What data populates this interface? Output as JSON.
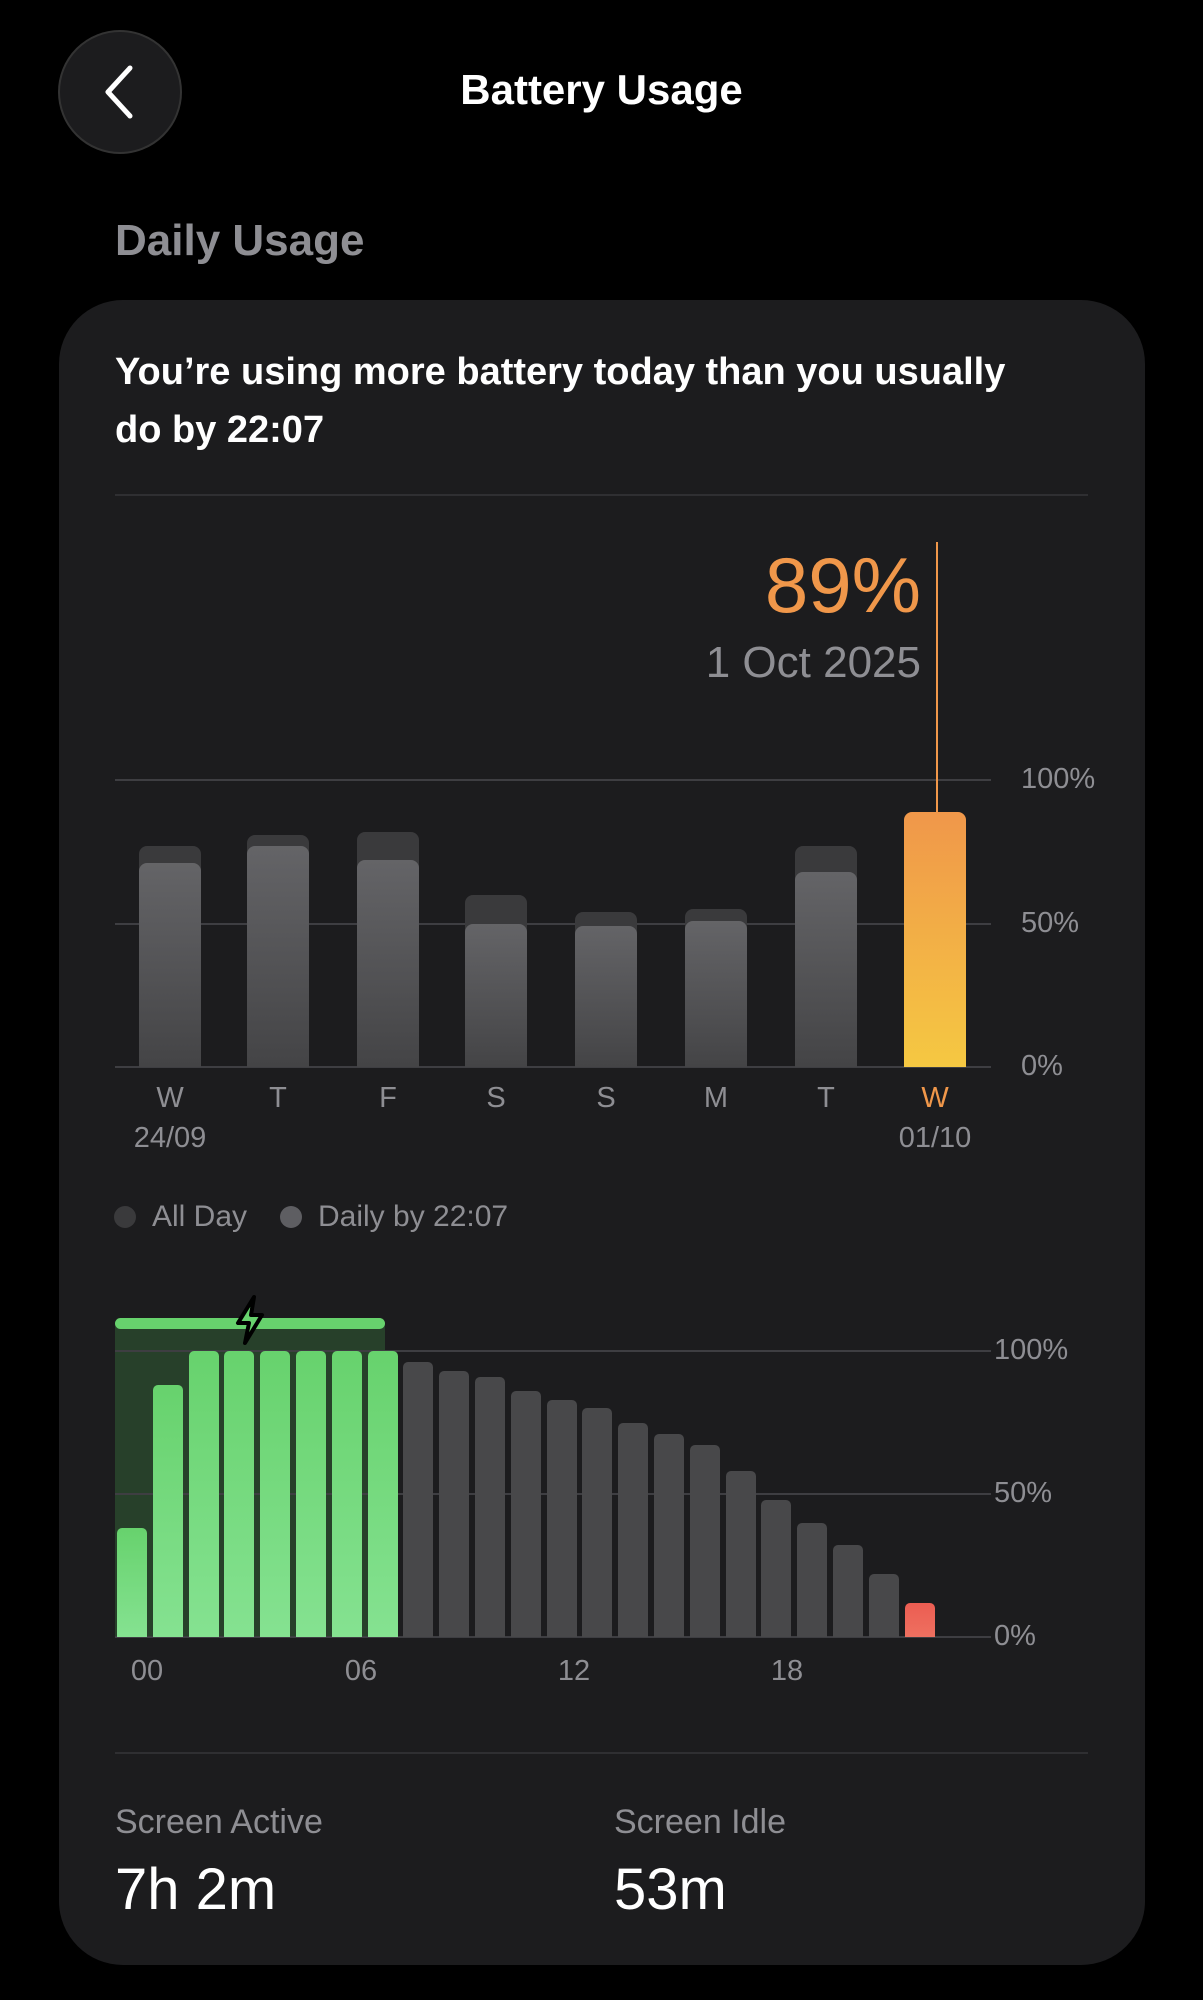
{
  "header": {
    "title": "Battery Usage",
    "back_icon": "chevron-left-icon"
  },
  "section_title": "Daily Usage",
  "card": {
    "headline": "You’re using more battery today than you usually do by 22:07",
    "selected": {
      "value": "89%",
      "date": "1 Oct 2025"
    },
    "legend": [
      {
        "label": "All Day",
        "color": "#3a3a3c"
      },
      {
        "label": "Daily by 22:07",
        "color": "#5e5e62"
      }
    ],
    "stats": [
      {
        "label": "Screen Active",
        "value": "7h 2m"
      },
      {
        "label": "Screen Idle",
        "value": "53m"
      }
    ]
  },
  "colors": {
    "accent": "#f0974a",
    "accent_bottom": "#f5c842",
    "charging": "#67d26d",
    "low": "#ec5d52",
    "bar": "#48484a"
  },
  "chart_data": [
    {
      "type": "bar",
      "categories": [
        "W",
        "T",
        "F",
        "S",
        "S",
        "M",
        "T",
        "W"
      ],
      "date_labels": [
        "24/09",
        "",
        "",
        "",
        "",
        "",
        "",
        "01/10"
      ],
      "series": [
        {
          "name": "All Day",
          "values": [
            77,
            81,
            82,
            60,
            54,
            55,
            77,
            89
          ]
        },
        {
          "name": "Daily by 22:07",
          "values": [
            71,
            77,
            72,
            50,
            49,
            51,
            68,
            89
          ]
        }
      ],
      "yticks": [
        "100%",
        "50%",
        "0%"
      ],
      "ylim": [
        0,
        100
      ],
      "highlight_index": 7
    },
    {
      "type": "bar",
      "hours": [
        0,
        1,
        2,
        3,
        4,
        5,
        6,
        7,
        8,
        9,
        10,
        11,
        12,
        13,
        14,
        15,
        16,
        17,
        18,
        19,
        20,
        21,
        22
      ],
      "values": [
        38,
        88,
        100,
        100,
        100,
        100,
        100,
        100,
        96,
        93,
        91,
        86,
        83,
        80,
        75,
        71,
        67,
        58,
        48,
        40,
        32,
        22,
        12
      ],
      "charging_hours": [
        0,
        1,
        2,
        3,
        4,
        5,
        6,
        7
      ],
      "low_hours": [
        22
      ],
      "xticks": [
        "00",
        "06",
        "12",
        "18"
      ],
      "yticks": [
        "100%",
        "50%",
        "0%"
      ],
      "ylim": [
        0,
        100
      ]
    }
  ]
}
